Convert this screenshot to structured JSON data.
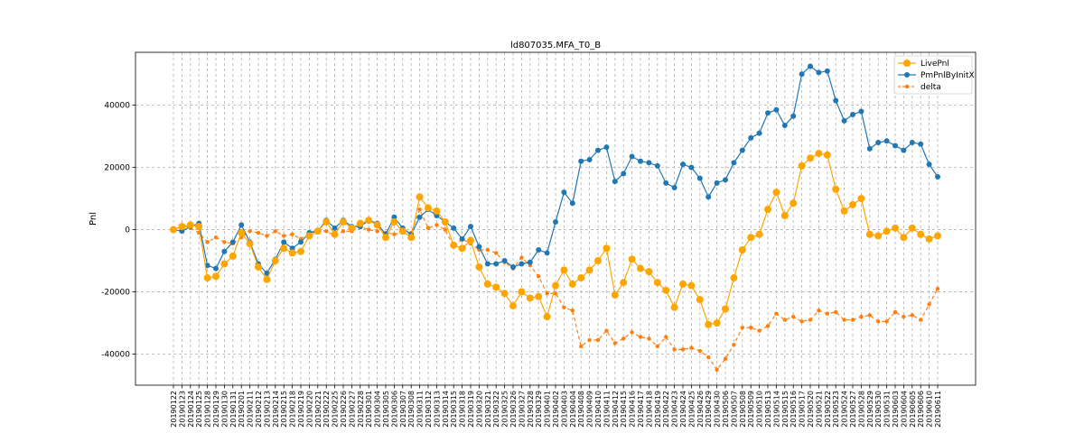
{
  "chart_data": {
    "type": "line",
    "title": "ld807035.MFA_T0_B",
    "xlabel": "",
    "ylabel": "Pnl",
    "ylim": [
      -50000,
      57000
    ],
    "yticks": [
      -40000,
      -20000,
      0,
      20000,
      40000
    ],
    "grid": true,
    "legend_position": "top-right",
    "x": [
      "20190122",
      "20190123",
      "20190124",
      "20190125",
      "20190128",
      "20190129",
      "20190130",
      "20190131",
      "20190201",
      "20190211",
      "20190212",
      "20190213",
      "20190214",
      "20190215",
      "20190218",
      "20190219",
      "20190220",
      "20190221",
      "20190222",
      "20190225",
      "20190226",
      "20190227",
      "20190228",
      "20190301",
      "20190304",
      "20190305",
      "20190306",
      "20190307",
      "20190308",
      "20190311",
      "20190312",
      "20190313",
      "20190314",
      "20190315",
      "20190318",
      "20190319",
      "20190320",
      "20190321",
      "20190322",
      "20190325",
      "20190326",
      "20190327",
      "20190328",
      "20190329",
      "20190401",
      "20190402",
      "20190403",
      "20190404",
      "20190408",
      "20190409",
      "20190410",
      "20190411",
      "20190412",
      "20190415",
      "20190416",
      "20190417",
      "20190418",
      "20190419",
      "20190422",
      "20190423",
      "20190424",
      "20190425",
      "20190426",
      "20190429",
      "20190430",
      "20190506",
      "20190507",
      "20190508",
      "20190509",
      "20190510",
      "20190513",
      "20190514",
      "20190515",
      "20190516",
      "20190517",
      "20190520",
      "20190521",
      "20190522",
      "20190523",
      "20190524",
      "20190527",
      "20190528",
      "20190529",
      "20190530",
      "20190531",
      "20190603",
      "20190604",
      "20190605",
      "20190606",
      "20190610",
      "20190611"
    ],
    "series": [
      {
        "name": "LivePnl",
        "color": "#ffa500",
        "marker": "circle-large",
        "values": [
          0,
          1000,
          1500,
          1000,
          -15500,
          -15000,
          -11000,
          -8500,
          -1000,
          -4500,
          -12000,
          -16000,
          -10000,
          -6000,
          -7500,
          -7000,
          -2000,
          -500,
          2500,
          -1500,
          2500,
          500,
          2000,
          3000,
          1500,
          -2500,
          2500,
          -500,
          -2500,
          10500,
          7000,
          6000,
          2500,
          -5000,
          -6000,
          -3500,
          -12000,
          -17500,
          -18500,
          -20500,
          -24500,
          -20000,
          -22000,
          -21500,
          -28000,
          -18000,
          -13000,
          -17500,
          -15500,
          -13000,
          -10000,
          -6000,
          -21000,
          -17000,
          -9500,
          -12500,
          -13500,
          -17000,
          -19500,
          -25000,
          -17500,
          -18000,
          -22500,
          -30500,
          -30000,
          -25500,
          -15500,
          -6500,
          -2500,
          -1500,
          6500,
          12000,
          4500,
          8500,
          20500,
          23000,
          24500,
          24000,
          13000,
          6000,
          8000,
          10000,
          -1500,
          -2000,
          -500,
          500,
          -2500,
          500,
          -1500,
          -3000,
          -2000
        ]
      },
      {
        "name": "PmPnlByInitX",
        "color": "#1f77b4",
        "marker": "circle",
        "values": [
          0,
          -500,
          1000,
          2000,
          -11500,
          -12500,
          -7000,
          -4000,
          1500,
          -4000,
          -11000,
          -14000,
          -9500,
          -4000,
          -6000,
          -4000,
          -1000,
          -500,
          3000,
          500,
          3000,
          1000,
          1000,
          3000,
          2000,
          -1500,
          4000,
          500,
          -1500,
          4000,
          6500,
          4500,
          2500,
          500,
          -3000,
          1000,
          -5500,
          -11000,
          -11000,
          -10000,
          -12000,
          -11000,
          -10500,
          -6500,
          -7500,
          2500,
          12000,
          8500,
          22000,
          22500,
          25500,
          26500,
          15500,
          18000,
          23500,
          22000,
          21500,
          20500,
          15000,
          13500,
          21000,
          20000,
          16500,
          10500,
          15000,
          16000,
          21500,
          25500,
          29500,
          31000,
          37500,
          38500,
          33500,
          36500,
          50000,
          52500,
          50500,
          51000,
          41500,
          35000,
          37000,
          38000,
          26000,
          28000,
          28500,
          27000,
          25500,
          28000,
          27500,
          21000,
          17000
        ]
      },
      {
        "name": "delta",
        "color": "#ff7f0e",
        "marker": "circle-small",
        "dashed": true,
        "values": [
          0,
          1500,
          500,
          -1000,
          -4000,
          -2500,
          -4000,
          -4500,
          -2500,
          -500,
          -1000,
          -2000,
          -500,
          -2000,
          -1500,
          -3000,
          -1000,
          0,
          -500,
          -2000,
          -500,
          -500,
          1000,
          0,
          -500,
          -1000,
          -1500,
          -1000,
          -1000,
          6500,
          500,
          1500,
          0,
          -5500,
          -3000,
          -4500,
          -6500,
          -6500,
          -7500,
          -10500,
          -12500,
          -9000,
          -11500,
          -15000,
          -20500,
          -20500,
          -25000,
          -26000,
          -37500,
          -35500,
          -35500,
          -32500,
          -36500,
          -35000,
          -33000,
          -34500,
          -35000,
          -37500,
          -34500,
          -38500,
          -38500,
          -38000,
          -39000,
          -41000,
          -45000,
          -41500,
          -37000,
          -31500,
          -31500,
          -32500,
          -31000,
          -27000,
          -29000,
          -28000,
          -29500,
          -29000,
          -26000,
          -27000,
          -26500,
          -29000,
          -29000,
          -28000,
          -27500,
          -29500,
          -29500,
          -26500,
          -28000,
          -27500,
          -29000,
          -24000,
          -19000
        ]
      }
    ]
  }
}
